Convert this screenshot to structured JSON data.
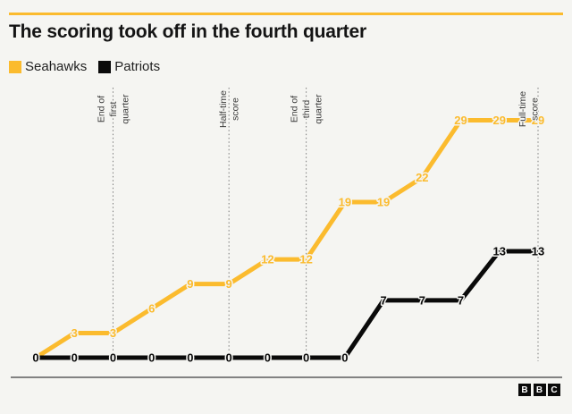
{
  "header": {
    "title": "The scoring took off in the fourth quarter",
    "accent_color": "#fbbb2e"
  },
  "legend": {
    "items": [
      {
        "label": "Seahawks",
        "color": "#fbbb2e"
      },
      {
        "label": "Patriots",
        "color": "#0a0a0a"
      }
    ]
  },
  "chart_data": {
    "type": "line",
    "title": "The scoring took off in the fourth quarter",
    "xlabel": "",
    "ylabel": "",
    "x": [
      0,
      1,
      2,
      3,
      4,
      5,
      6,
      7,
      8,
      9,
      10,
      11,
      12,
      13
    ],
    "ylim": [
      0,
      30
    ],
    "grid": false,
    "legend_position": "top-left",
    "point_labels": true,
    "background": "#f5f5f2",
    "marker_line_color": "#7b7b7b",
    "marker_text_color": "#3a3a3a",
    "series": [
      {
        "name": "Seahawks",
        "color": "#fbbb2e",
        "values": [
          0,
          3,
          3,
          6,
          9,
          9,
          12,
          12,
          19,
          19,
          22,
          29,
          29,
          29
        ]
      },
      {
        "name": "Patriots",
        "color": "#0a0a0a",
        "values": [
          0,
          0,
          0,
          0,
          0,
          0,
          0,
          0,
          0,
          7,
          7,
          7,
          13,
          13
        ]
      }
    ],
    "markers": [
      {
        "index": 2,
        "lines": [
          "End of",
          "first",
          "quarter"
        ],
        "shift_x": 0
      },
      {
        "index": 5,
        "lines": [
          "Half-time",
          "score"
        ],
        "shift_x": 0
      },
      {
        "index": 7,
        "lines": [
          "End of",
          "third",
          "quarter"
        ],
        "shift_x": 0
      },
      {
        "index": 13,
        "lines": [
          "Full-time",
          "score"
        ],
        "shift_x": -11
      }
    ]
  },
  "footer": {
    "logo_letters": [
      "B",
      "B",
      "C"
    ]
  }
}
